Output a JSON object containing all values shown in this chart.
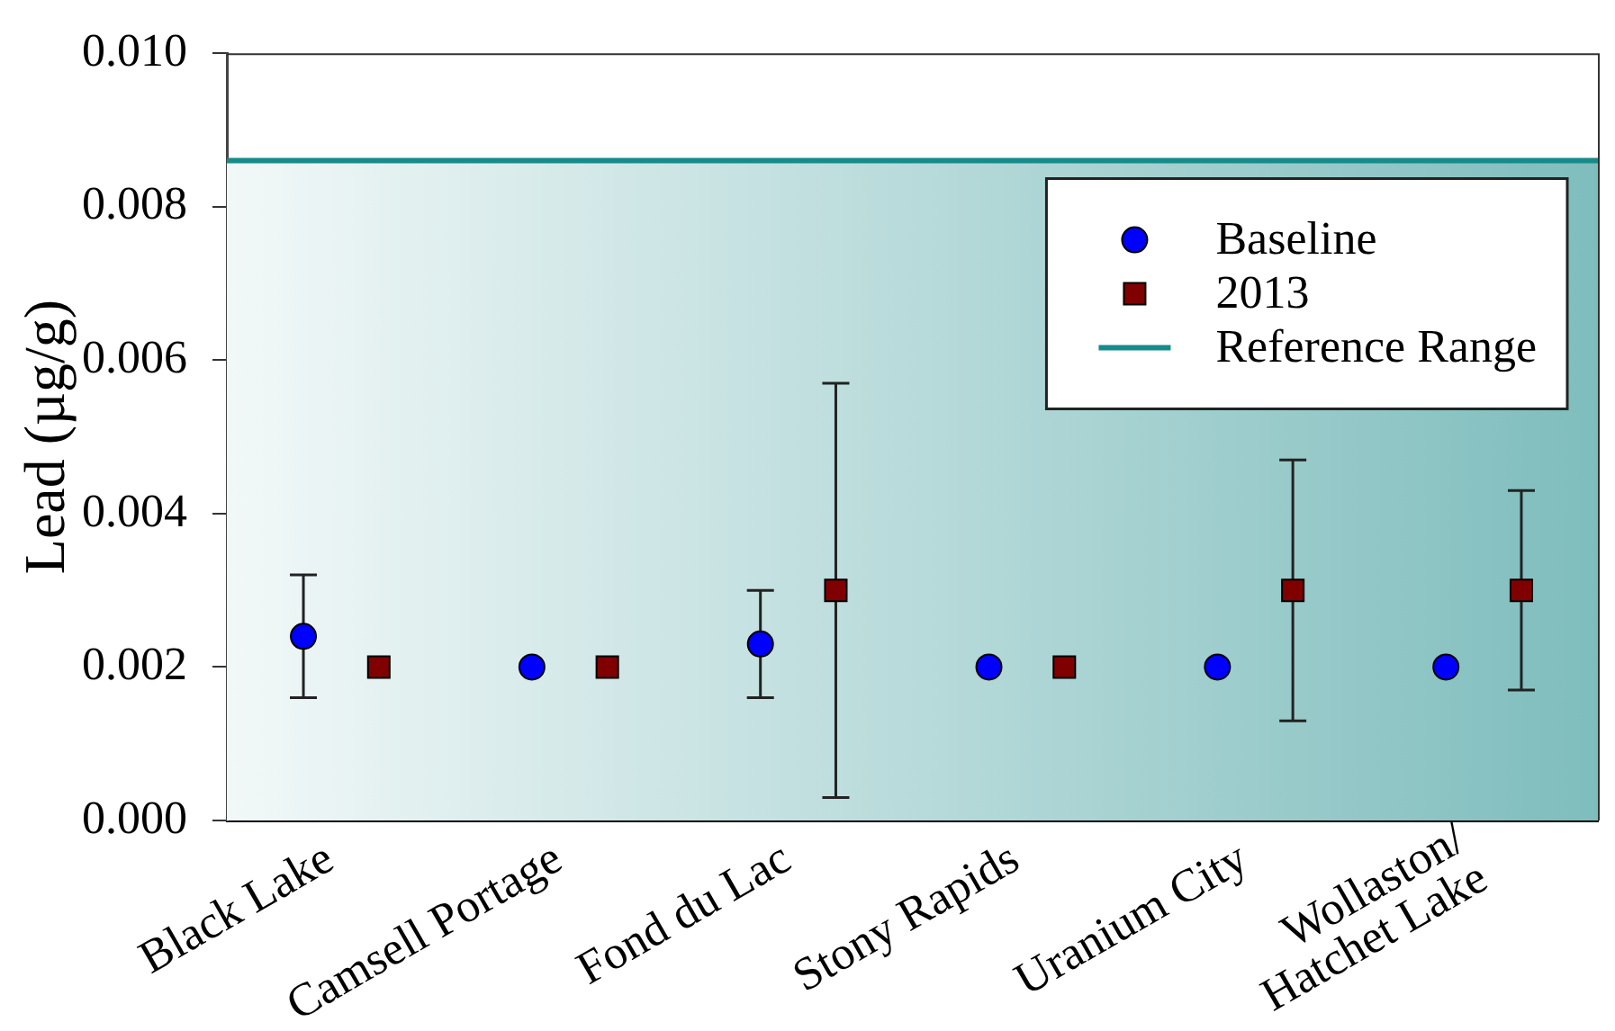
{
  "chart_data": {
    "type": "scatter",
    "ylabel": "Lead (µg/g)",
    "categories": [
      "Black Lake",
      "Camsell Portage",
      "Fond du Lac",
      "Stony Rapids",
      "Uranium City",
      "Wollaston/\nHatchet Lake"
    ],
    "series": [
      {
        "name": "Baseline",
        "color": "#0000ff",
        "marker": "circle",
        "values": [
          0.0024,
          0.002,
          0.0023,
          0.002,
          0.002,
          0.002
        ],
        "errors": [
          0.0008,
          null,
          0.0007,
          null,
          null,
          null
        ]
      },
      {
        "name": "2013",
        "color": "#800000",
        "marker": "square",
        "values": [
          0.002,
          0.002,
          0.003,
          0.002,
          0.003,
          0.003
        ],
        "errors": [
          null,
          null,
          0.0027,
          null,
          0.0017,
          0.0013
        ]
      }
    ],
    "ylim": [
      0,
      0.01
    ],
    "yticks": [
      {
        "value": 0,
        "label": "0.000"
      },
      0.002,
      0.004,
      0.006,
      0.008,
      {
        "value": 0.01,
        "label": "0.010"
      }
    ],
    "ref_lines": [
      {
        "axis": "y",
        "value": 0.0086,
        "label": "Reference Range",
        "color": "#178b8b"
      }
    ],
    "bands": [
      {
        "axis": "y",
        "from": 0,
        "to": 0.0086,
        "color": "#7fbdbd"
      }
    ],
    "legend": "top right",
    "grid": false
  }
}
